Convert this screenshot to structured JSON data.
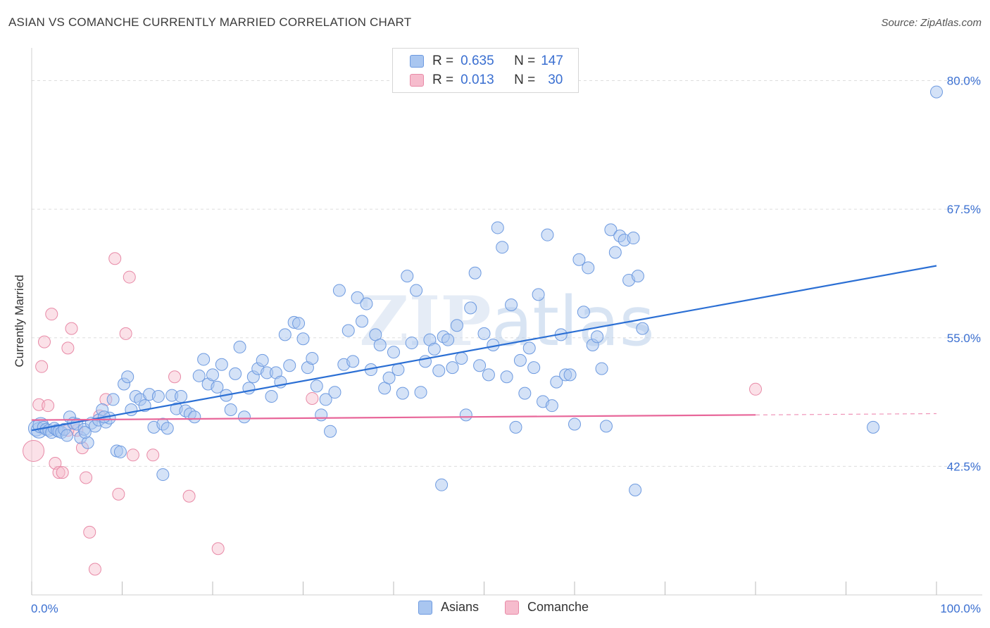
{
  "header": {
    "title": "ASIAN VS COMANCHE CURRENTLY MARRIED CORRELATION CHART",
    "source": "Source: ZipAtlas.com"
  },
  "legend": {
    "asians": {
      "r_label": "R =",
      "r_value": "0.635",
      "n_label": "N =",
      "n_value": "147"
    },
    "comanche": {
      "r_label": "R =",
      "r_value": "0.013",
      "n_label": "N =",
      "n_value": "30"
    }
  },
  "bottom_legend": {
    "asians": "Asians",
    "comanche": "Comanche"
  },
  "colors": {
    "asians_fill": "#a9c6f0",
    "asians_stroke": "#6d9ae0",
    "asians_line": "#2b6fd4",
    "comanche_fill": "#f6bccd",
    "comanche_stroke": "#e88aa7",
    "comanche_line": "#e8679a",
    "grid": "#dddddd",
    "axis_label": "#3a6fd1"
  },
  "chart_data": {
    "type": "scatter",
    "title": "ASIAN VS COMANCHE CURRENTLY MARRIED CORRELATION CHART",
    "xlabel": "",
    "ylabel": "Currently Married",
    "xlim": [
      0,
      100
    ],
    "ylim": [
      30,
      82.5
    ],
    "x_tick_labels": [
      "0.0%",
      "100.0%"
    ],
    "y_ticks": [
      42.5,
      55.0,
      67.5,
      80.0
    ],
    "y_tick_labels": [
      "42.5%",
      "55.0%",
      "67.5%",
      "80.0%"
    ],
    "grid": true,
    "legend_position": "top-center",
    "watermark": "ZIPatlas",
    "series": [
      {
        "name": "Asians",
        "r": 0.635,
        "n": 147,
        "trend": {
          "x": [
            0,
            100
          ],
          "y": [
            46.0,
            62.0
          ]
        },
        "points": [
          [
            0.5,
            46.2
          ],
          [
            0.8,
            46.0
          ],
          [
            1.0,
            46.5
          ],
          [
            1.3,
            46.3
          ],
          [
            1.6,
            46.1
          ],
          [
            1.9,
            46.0
          ],
          [
            2.2,
            45.8
          ],
          [
            2.5,
            46.2
          ],
          [
            2.8,
            46.0
          ],
          [
            3.0,
            45.9
          ],
          [
            3.3,
            45.8
          ],
          [
            3.6,
            46.1
          ],
          [
            3.9,
            45.5
          ],
          [
            4.2,
            47.3
          ],
          [
            4.6,
            46.7
          ],
          [
            5.0,
            46.6
          ],
          [
            5.4,
            45.3
          ],
          [
            5.8,
            46.1
          ],
          [
            6.2,
            44.8
          ],
          [
            6.6,
            46.7
          ],
          [
            7.0,
            46.4
          ],
          [
            7.4,
            47.0
          ],
          [
            7.8,
            48.0
          ],
          [
            8.2,
            46.8
          ],
          [
            8.6,
            47.2
          ],
          [
            9.0,
            49.0
          ],
          [
            9.4,
            44.0
          ],
          [
            9.8,
            43.9
          ],
          [
            10.2,
            50.5
          ],
          [
            10.6,
            51.2
          ],
          [
            11.0,
            48.0
          ],
          [
            11.5,
            49.3
          ],
          [
            12.0,
            49.0
          ],
          [
            12.5,
            48.4
          ],
          [
            13.0,
            49.5
          ],
          [
            13.5,
            46.3
          ],
          [
            14.0,
            49.3
          ],
          [
            14.5,
            46.6
          ],
          [
            15.0,
            46.2
          ],
          [
            15.5,
            49.4
          ],
          [
            16.0,
            48.1
          ],
          [
            16.5,
            49.3
          ],
          [
            17.0,
            47.9
          ],
          [
            17.5,
            47.6
          ],
          [
            18.0,
            47.3
          ],
          [
            18.5,
            51.3
          ],
          [
            19.0,
            52.9
          ],
          [
            19.5,
            50.5
          ],
          [
            20.0,
            51.4
          ],
          [
            20.5,
            50.2
          ],
          [
            21.0,
            52.4
          ],
          [
            21.5,
            49.4
          ],
          [
            22.0,
            48.0
          ],
          [
            22.5,
            51.5
          ],
          [
            23.0,
            54.1
          ],
          [
            23.5,
            47.3
          ],
          [
            24.0,
            50.1
          ],
          [
            24.5,
            51.2
          ],
          [
            25.0,
            52.0
          ],
          [
            25.5,
            52.8
          ],
          [
            26.0,
            51.6
          ],
          [
            26.5,
            49.3
          ],
          [
            27.0,
            51.6
          ],
          [
            27.5,
            50.7
          ],
          [
            28.0,
            55.3
          ],
          [
            28.5,
            52.3
          ],
          [
            29.0,
            56.5
          ],
          [
            29.5,
            56.4
          ],
          [
            30.0,
            54.9
          ],
          [
            30.5,
            52.1
          ],
          [
            31.0,
            53.0
          ],
          [
            31.5,
            50.3
          ],
          [
            32.0,
            47.5
          ],
          [
            32.5,
            49.0
          ],
          [
            33.0,
            45.9
          ],
          [
            33.5,
            49.7
          ],
          [
            34.0,
            59.6
          ],
          [
            34.5,
            52.4
          ],
          [
            35.0,
            55.7
          ],
          [
            35.5,
            52.7
          ],
          [
            36.0,
            58.9
          ],
          [
            36.5,
            56.6
          ],
          [
            37.0,
            58.3
          ],
          [
            37.5,
            51.9
          ],
          [
            38.0,
            55.3
          ],
          [
            38.5,
            54.3
          ],
          [
            39.0,
            50.1
          ],
          [
            39.5,
            51.1
          ],
          [
            40.0,
            53.6
          ],
          [
            40.5,
            51.9
          ],
          [
            41.0,
            49.6
          ],
          [
            41.5,
            61.0
          ],
          [
            42.0,
            54.5
          ],
          [
            42.5,
            59.6
          ],
          [
            43.0,
            49.7
          ],
          [
            43.5,
            52.7
          ],
          [
            44.0,
            54.8
          ],
          [
            44.5,
            53.9
          ],
          [
            45.0,
            51.8
          ],
          [
            45.5,
            55.1
          ],
          [
            46.0,
            54.8
          ],
          [
            46.5,
            52.1
          ],
          [
            47.0,
            56.2
          ],
          [
            47.5,
            53.0
          ],
          [
            48.0,
            47.5
          ],
          [
            48.5,
            57.9
          ],
          [
            49.0,
            61.3
          ],
          [
            49.5,
            52.3
          ],
          [
            50.0,
            55.4
          ],
          [
            50.5,
            51.4
          ],
          [
            51.0,
            54.3
          ],
          [
            51.5,
            65.7
          ],
          [
            52.0,
            63.8
          ],
          [
            52.5,
            51.2
          ],
          [
            53.0,
            58.2
          ],
          [
            53.5,
            46.3
          ],
          [
            54.0,
            52.8
          ],
          [
            54.5,
            49.6
          ],
          [
            55.0,
            54.0
          ],
          [
            55.5,
            52.1
          ],
          [
            56.0,
            59.2
          ],
          [
            56.5,
            48.8
          ],
          [
            57.0,
            65.0
          ],
          [
            57.5,
            48.4
          ],
          [
            58.0,
            50.7
          ],
          [
            58.5,
            55.3
          ],
          [
            59.0,
            51.4
          ],
          [
            59.5,
            51.4
          ],
          [
            60.0,
            46.6
          ],
          [
            60.5,
            62.6
          ],
          [
            61.0,
            57.5
          ],
          [
            61.5,
            61.8
          ],
          [
            62.0,
            54.3
          ],
          [
            62.5,
            55.1
          ],
          [
            63.0,
            52.0
          ],
          [
            63.5,
            46.4
          ],
          [
            64.0,
            65.5
          ],
          [
            64.5,
            63.3
          ],
          [
            65.0,
            64.9
          ],
          [
            65.5,
            64.5
          ],
          [
            66.0,
            60.6
          ],
          [
            66.5,
            64.7
          ],
          [
            67.0,
            61.0
          ],
          [
            67.5,
            55.9
          ],
          [
            45.3,
            40.7
          ],
          [
            66.7,
            40.2
          ],
          [
            93.0,
            46.3
          ],
          [
            100.0,
            78.9
          ],
          [
            14.5,
            41.7
          ],
          [
            8.0,
            47.3
          ],
          [
            5.9,
            45.8
          ]
        ]
      },
      {
        "name": "Comanche",
        "r": 0.013,
        "n": 30,
        "trend": {
          "x": [
            0,
            80
          ],
          "y": [
            47.0,
            47.5
          ]
        },
        "points": [
          [
            0.2,
            44.0
          ],
          [
            0.8,
            48.5
          ],
          [
            1.1,
            52.2
          ],
          [
            1.4,
            54.6
          ],
          [
            1.8,
            48.4
          ],
          [
            2.2,
            57.3
          ],
          [
            2.6,
            42.8
          ],
          [
            3.0,
            41.9
          ],
          [
            3.4,
            41.9
          ],
          [
            4.0,
            54.0
          ],
          [
            4.4,
            55.9
          ],
          [
            5.0,
            46.0
          ],
          [
            5.6,
            44.3
          ],
          [
            6.0,
            41.4
          ],
          [
            6.4,
            36.1
          ],
          [
            7.0,
            32.5
          ],
          [
            7.5,
            47.4
          ],
          [
            8.2,
            49.0
          ],
          [
            9.2,
            62.7
          ],
          [
            9.6,
            39.8
          ],
          [
            10.4,
            55.4
          ],
          [
            10.8,
            60.9
          ],
          [
            11.2,
            43.6
          ],
          [
            13.4,
            43.6
          ],
          [
            15.8,
            51.2
          ],
          [
            17.4,
            39.6
          ],
          [
            20.6,
            34.5
          ],
          [
            31.0,
            49.1
          ],
          [
            80.0,
            50.0
          ],
          [
            4.0,
            46.0
          ]
        ]
      }
    ]
  }
}
